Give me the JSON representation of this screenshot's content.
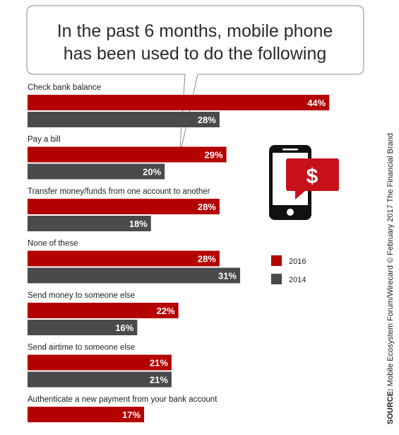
{
  "chart_data": {
    "type": "bar",
    "orientation": "horizontal",
    "title_lines": [
      "In the past 6 months, mobile phone",
      "has been used to do the following"
    ],
    "categories": [
      "Check bank balance",
      "Pay a bill",
      "Transfer money/funds from one account to another",
      "None of these",
      "Send money to someone else",
      "Send airtime to someone else",
      "Authenticate a new payment from your bank account"
    ],
    "series": [
      {
        "name": "2016",
        "color": "#b50000",
        "values": [
          44,
          29,
          28,
          28,
          22,
          21,
          17
        ],
        "labels": [
          "44%",
          "29%",
          "28%",
          "28%",
          "22%",
          "21%",
          "17%"
        ]
      },
      {
        "name": "2014",
        "color": "#4a4a4a",
        "values": [
          28,
          20,
          18,
          31,
          16,
          21,
          null
        ],
        "labels": [
          "28%",
          "20%",
          "18%",
          "31%",
          "16%",
          "21%",
          ""
        ]
      }
    ],
    "value_unit": "%",
    "xlim": [
      0,
      50
    ],
    "legend_position": "right",
    "grid": false
  },
  "source": {
    "prefix": "SOURCE:",
    "text": " Mobile Ecosystem Forum/Wirecard © February 2017 The Financial Brand"
  },
  "icon": {
    "name": "smartphone-dollar-icon",
    "accent": "#c8101a",
    "body": "#111111"
  }
}
